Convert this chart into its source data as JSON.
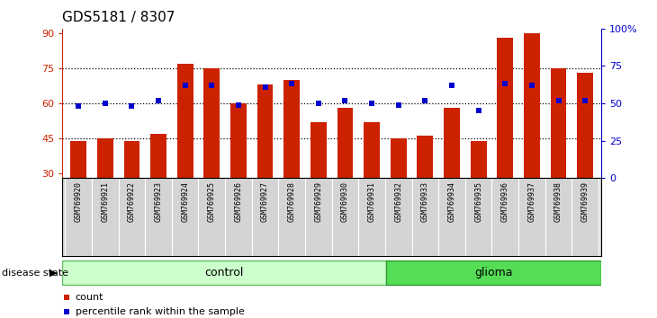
{
  "title": "GDS5181 / 8307",
  "samples": [
    "GSM769920",
    "GSM769921",
    "GSM769922",
    "GSM769923",
    "GSM769924",
    "GSM769925",
    "GSM769926",
    "GSM769927",
    "GSM769928",
    "GSM769929",
    "GSM769930",
    "GSM769931",
    "GSM769932",
    "GSM769933",
    "GSM769934",
    "GSM769935",
    "GSM769936",
    "GSM769937",
    "GSM769938",
    "GSM769939"
  ],
  "bar_heights": [
    44,
    45,
    44,
    47,
    77,
    75,
    60,
    68,
    70,
    52,
    58,
    52,
    45,
    46,
    58,
    44,
    88,
    90,
    75,
    73
  ],
  "percentile_ranks": [
    48,
    50,
    48,
    52,
    62,
    62,
    49,
    61,
    63,
    50,
    52,
    50,
    49,
    52,
    62,
    45,
    63,
    62,
    52,
    52
  ],
  "bar_color": "#cc2200",
  "dot_color": "#0000cc",
  "ylim_left": [
    28,
    92
  ],
  "ylim_right": [
    0,
    100
  ],
  "yticks_left": [
    30,
    45,
    60,
    75,
    90
  ],
  "yticks_right": [
    0,
    25,
    50,
    75,
    100
  ],
  "ytick_labels_right": [
    "0",
    "25",
    "50",
    "75",
    "100%"
  ],
  "hline_values": [
    45,
    60,
    75
  ],
  "control_count": 12,
  "glioma_count": 8,
  "control_color": "#ccffcc",
  "glioma_color": "#55dd55",
  "group_label_control": "control",
  "group_label_glioma": "glioma",
  "legend_count_label": "count",
  "legend_percentile_label": "percentile rank within the sample",
  "disease_state_label": "disease state",
  "xticklabel_bg": "#d4d4d4",
  "title_fontsize": 11,
  "bar_width": 0.6
}
